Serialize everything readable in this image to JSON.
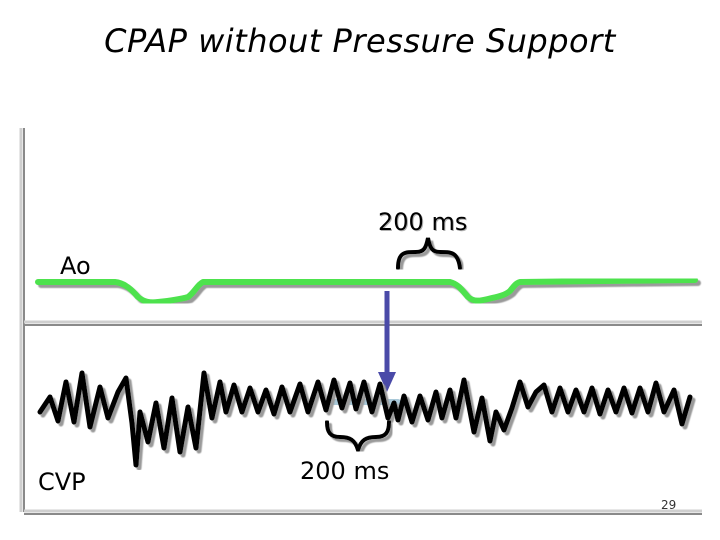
{
  "title": "CPAP without Pressure Support",
  "traces": {
    "ao_label": "Ao",
    "cvp_label": "CVP"
  },
  "annotations": {
    "interval_top": "200 ms",
    "interval_bottom": "200 ms"
  },
  "page_number": "29",
  "colors": {
    "ao_trace": "#4de24d",
    "cvp_trace": "#000000",
    "arrow": "#4a4aa8",
    "marker_bar": "#a8c8d8",
    "axis": "#9a9a9a"
  }
}
